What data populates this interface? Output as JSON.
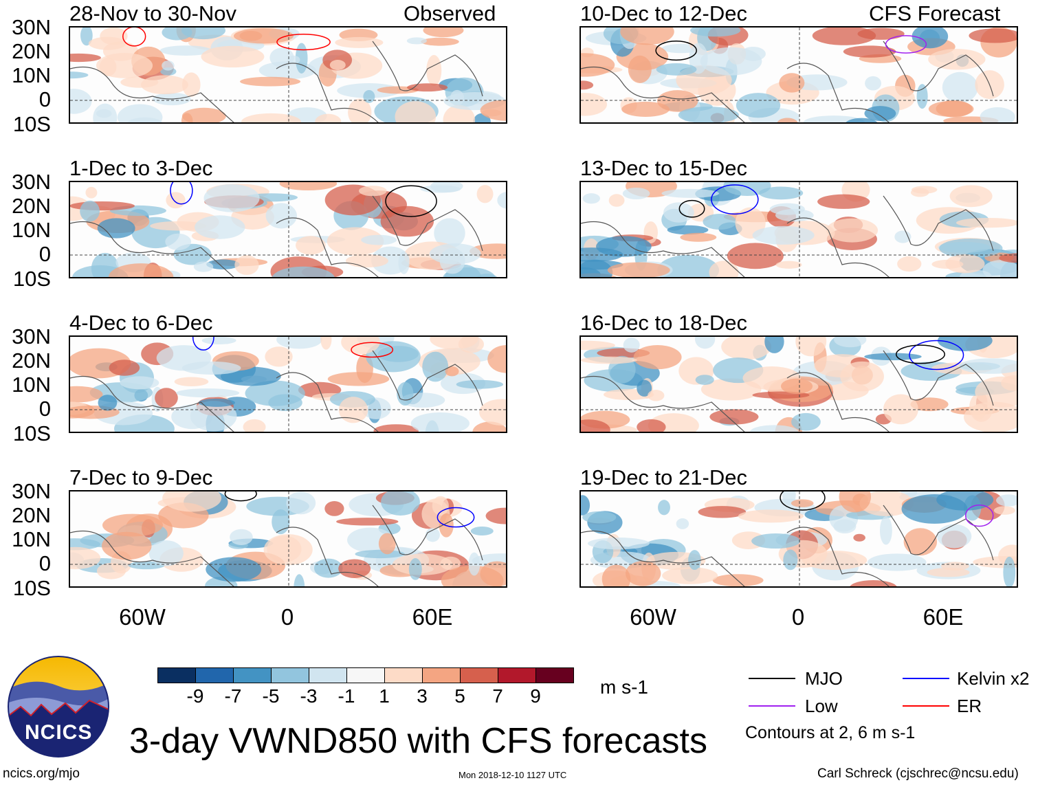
{
  "title": "3-day VWND850 with CFS forecasts",
  "columns": {
    "left_label": "Observed",
    "right_label": "CFS Forecast"
  },
  "panels": [
    {
      "period": "28-Nov to 30-Nov",
      "column": "left"
    },
    {
      "period": "1-Dec to 3-Dec",
      "column": "left"
    },
    {
      "period": "4-Dec to 6-Dec",
      "column": "left"
    },
    {
      "period": "7-Dec to 9-Dec",
      "column": "left"
    },
    {
      "period": "10-Dec to 12-Dec",
      "column": "right"
    },
    {
      "period": "13-Dec to 15-Dec",
      "column": "right"
    },
    {
      "period": "16-Dec to 18-Dec",
      "column": "right"
    },
    {
      "period": "19-Dec to 21-Dec",
      "column": "right"
    }
  ],
  "lat_labels": [
    "30N",
    "20N",
    "10N",
    "0",
    "10S"
  ],
  "lon_labels": [
    "60W",
    "0",
    "60E"
  ],
  "colorbar": {
    "colors": [
      "#0a2f61",
      "#2166ac",
      "#4393c3",
      "#92c5de",
      "#d1e5f0",
      "#f7f7f7",
      "#fddbc7",
      "#f4a582",
      "#d6604d",
      "#b2182b",
      "#67001f"
    ],
    "labels": [
      "-9",
      "-7",
      "-5",
      "-3",
      "-1",
      "1",
      "3",
      "5",
      "7",
      "9"
    ],
    "units": "m s-1"
  },
  "legend": {
    "items": [
      {
        "label": "MJO",
        "color": "#000000"
      },
      {
        "label": "Kelvin x2",
        "color": "#0000ff"
      },
      {
        "label": "Low",
        "color": "#a020f0"
      },
      {
        "label": "ER",
        "color": "#ff0000"
      }
    ],
    "note": "Contours at 2, 6 m s-1"
  },
  "logo_text": "NCICS",
  "footer": {
    "url": "ncics.org/mjo",
    "timestamp": "Mon 2018-12-10 1127 UTC",
    "author": "Carl Schreck (cjschrec@ncsu.edu)"
  }
}
